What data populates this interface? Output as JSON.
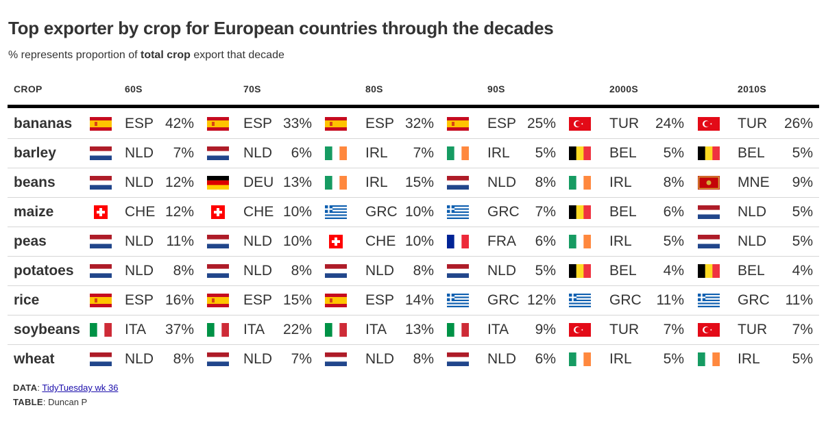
{
  "title": "Top exporter by crop for European countries through the decades",
  "subtitle": {
    "pre": "% represents proportion of ",
    "bold": "total crop",
    "post": " export that decade"
  },
  "chart_data": {
    "type": "table",
    "columns": [
      "CROP",
      "60S",
      "70S",
      "80S",
      "90S",
      "2000S",
      "2010S"
    ],
    "rows": [
      {
        "crop": "bananas",
        "cells": [
          [
            "ESP",
            "42%"
          ],
          [
            "ESP",
            "33%"
          ],
          [
            "ESP",
            "32%"
          ],
          [
            "ESP",
            "25%"
          ],
          [
            "TUR",
            "24%"
          ],
          [
            "TUR",
            "26%"
          ]
        ]
      },
      {
        "crop": "barley",
        "cells": [
          [
            "NLD",
            "7%"
          ],
          [
            "NLD",
            "6%"
          ],
          [
            "IRL",
            "7%"
          ],
          [
            "IRL",
            "5%"
          ],
          [
            "BEL",
            "5%"
          ],
          [
            "BEL",
            "5%"
          ]
        ]
      },
      {
        "crop": "beans",
        "cells": [
          [
            "NLD",
            "12%"
          ],
          [
            "DEU",
            "13%"
          ],
          [
            "IRL",
            "15%"
          ],
          [
            "NLD",
            "8%"
          ],
          [
            "IRL",
            "8%"
          ],
          [
            "MNE",
            "9%"
          ]
        ]
      },
      {
        "crop": "maize",
        "cells": [
          [
            "CHE",
            "12%"
          ],
          [
            "CHE",
            "10%"
          ],
          [
            "GRC",
            "10%"
          ],
          [
            "GRC",
            "7%"
          ],
          [
            "BEL",
            "6%"
          ],
          [
            "NLD",
            "5%"
          ]
        ]
      },
      {
        "crop": "peas",
        "cells": [
          [
            "NLD",
            "11%"
          ],
          [
            "NLD",
            "10%"
          ],
          [
            "CHE",
            "10%"
          ],
          [
            "FRA",
            "6%"
          ],
          [
            "IRL",
            "5%"
          ],
          [
            "NLD",
            "5%"
          ]
        ]
      },
      {
        "crop": "potatoes",
        "cells": [
          [
            "NLD",
            "8%"
          ],
          [
            "NLD",
            "8%"
          ],
          [
            "NLD",
            "8%"
          ],
          [
            "NLD",
            "5%"
          ],
          [
            "BEL",
            "4%"
          ],
          [
            "BEL",
            "4%"
          ]
        ]
      },
      {
        "crop": "rice",
        "cells": [
          [
            "ESP",
            "16%"
          ],
          [
            "ESP",
            "15%"
          ],
          [
            "ESP",
            "14%"
          ],
          [
            "GRC",
            "12%"
          ],
          [
            "GRC",
            "11%"
          ],
          [
            "GRC",
            "11%"
          ]
        ]
      },
      {
        "crop": "soybeans",
        "cells": [
          [
            "ITA",
            "37%"
          ],
          [
            "ITA",
            "22%"
          ],
          [
            "ITA",
            "13%"
          ],
          [
            "ITA",
            "9%"
          ],
          [
            "TUR",
            "7%"
          ],
          [
            "TUR",
            "7%"
          ]
        ]
      },
      {
        "crop": "wheat",
        "cells": [
          [
            "NLD",
            "8%"
          ],
          [
            "NLD",
            "7%"
          ],
          [
            "NLD",
            "8%"
          ],
          [
            "NLD",
            "6%"
          ],
          [
            "IRL",
            "5%"
          ],
          [
            "IRL",
            "5%"
          ]
        ]
      }
    ]
  },
  "footer": {
    "data_label": "DATA",
    "data_link": "TidyTuesday wk 36",
    "table_label": "TABLE",
    "table_value": "Duncan P"
  }
}
